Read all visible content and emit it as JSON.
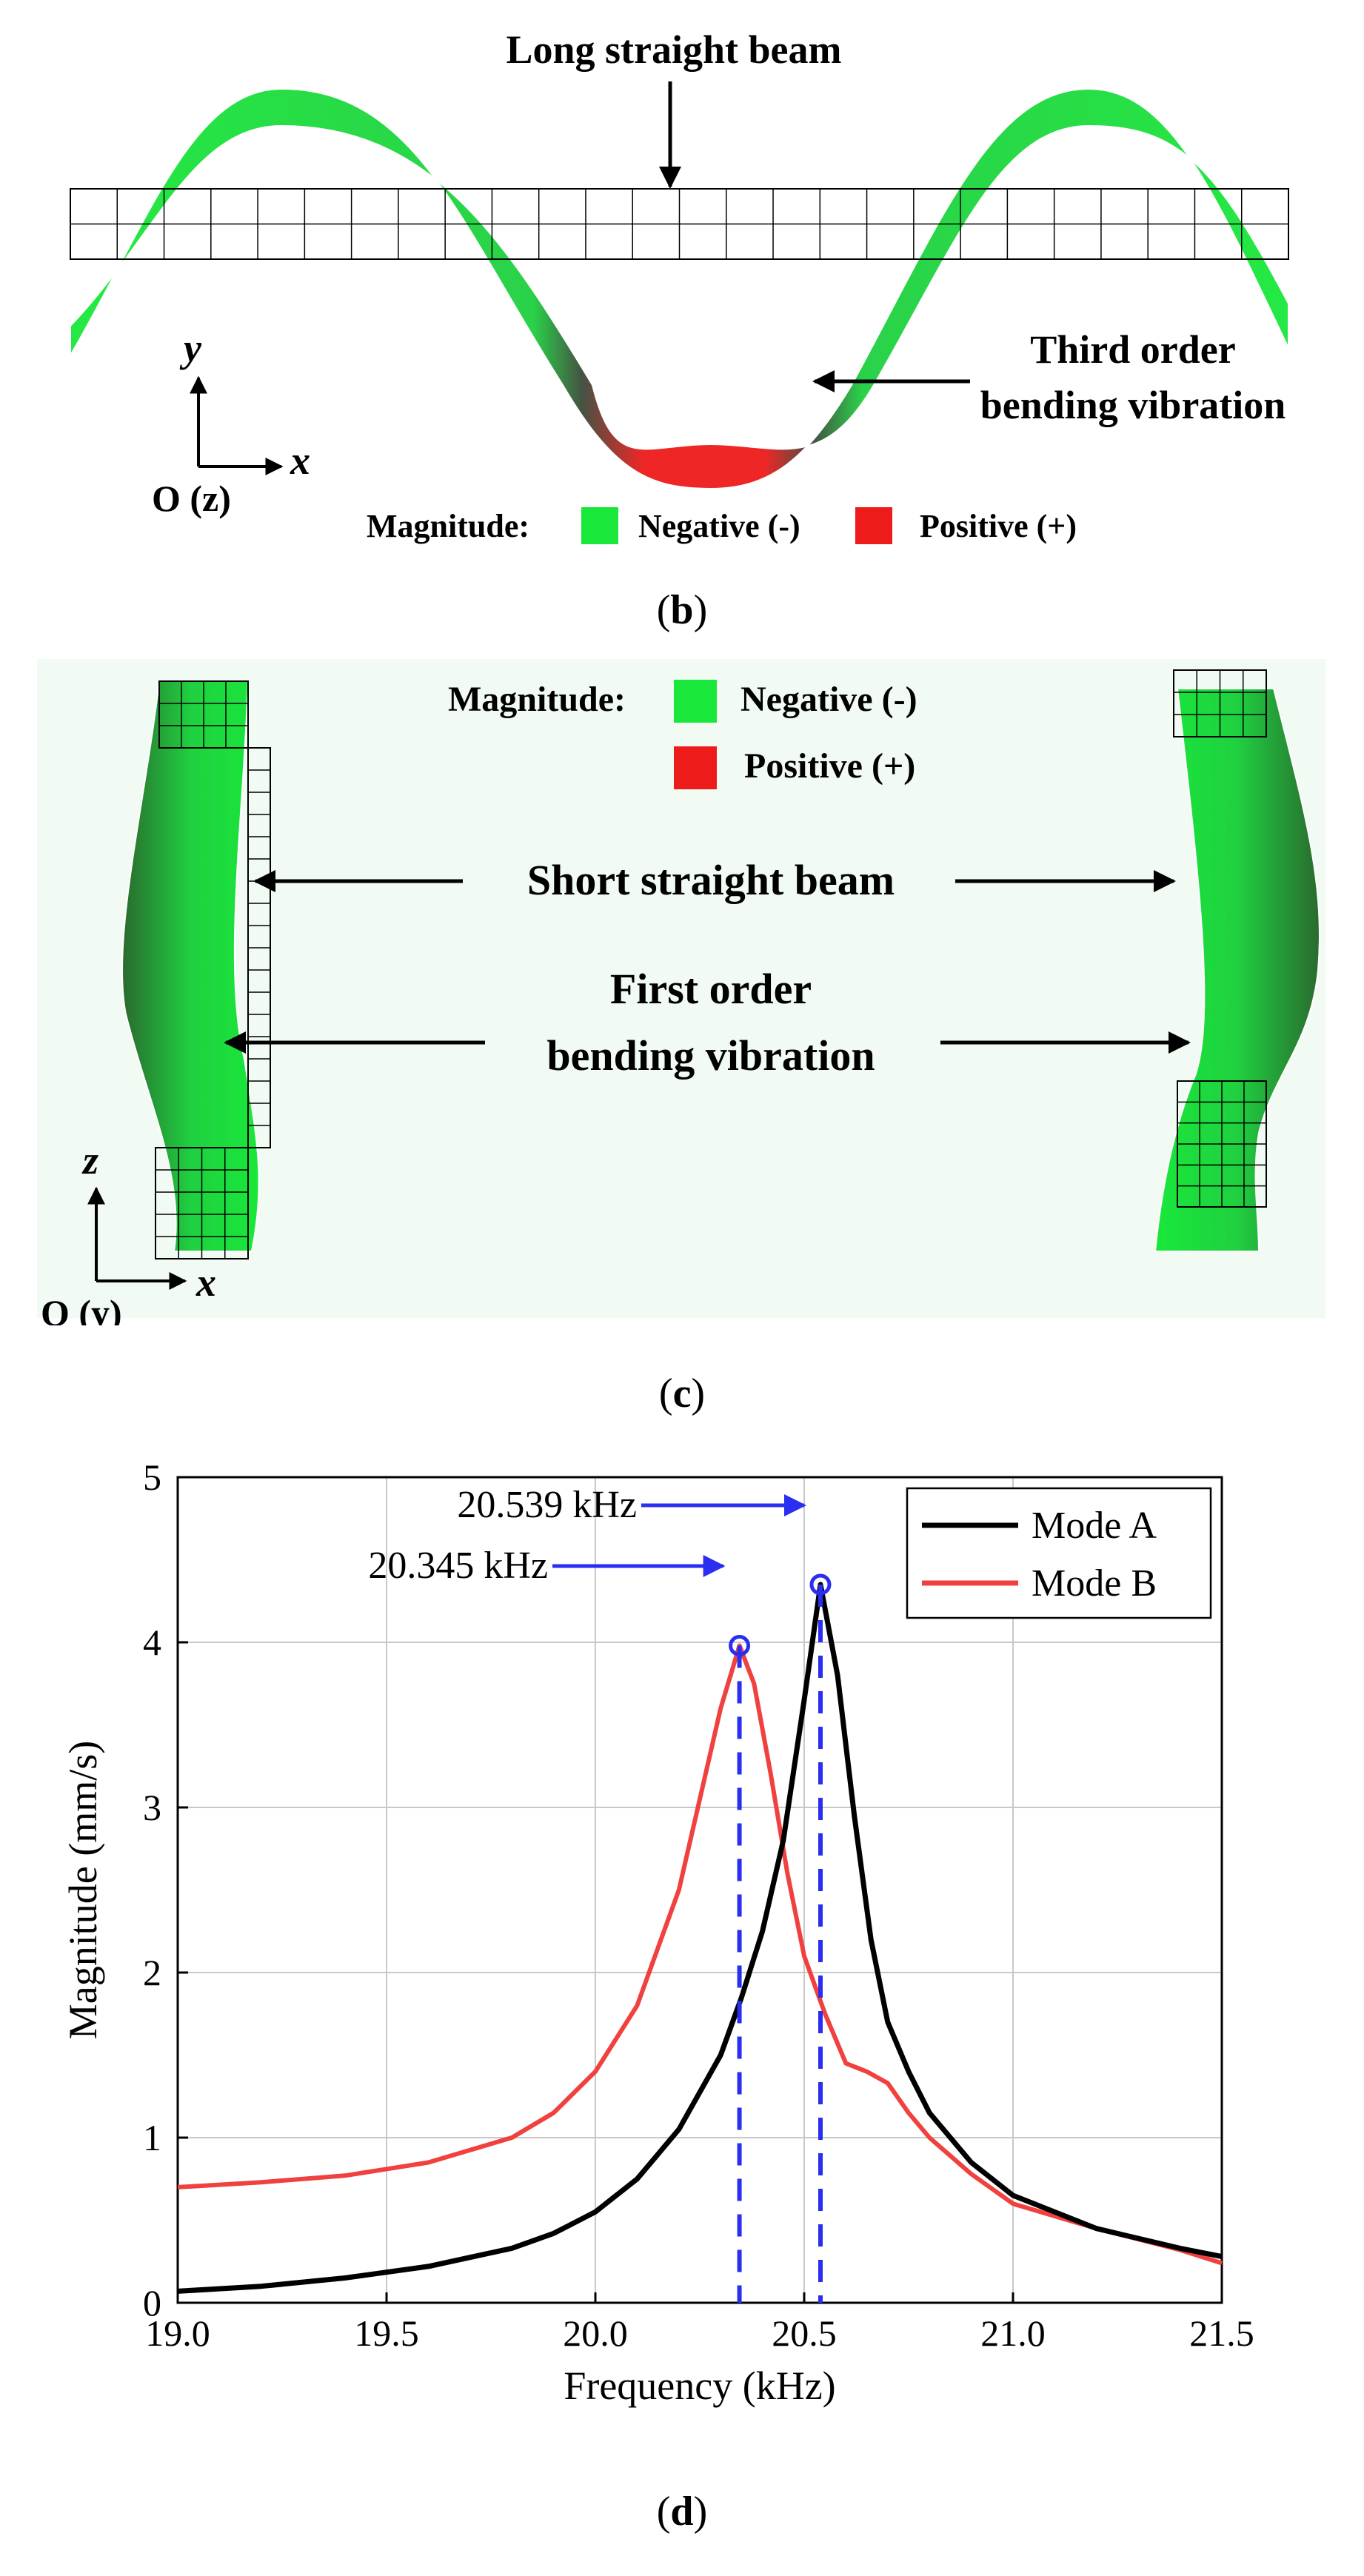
{
  "panel_b": {
    "beam_label": "Long straight beam",
    "vibration_label_line1": "Third order",
    "vibration_label_line2": "bending vibration",
    "axis_y": "y",
    "axis_x": "x",
    "origin_label": "O (z)",
    "legend_title": "Magnitude:",
    "legend_negative": "Negative (-)",
    "legend_positive": "Positive (+)",
    "caption_letter": "b",
    "colors": {
      "negative": "#19e83a",
      "positive": "#ee1b1b",
      "dark": "#2f4a2f"
    }
  },
  "panel_c": {
    "beam_label": "Short straight beam",
    "vibration_label_line1": "First order",
    "vibration_label_line2": "bending vibration",
    "axis_z": "z",
    "axis_x": "x",
    "origin_label": "O (y)",
    "legend_title": "Magnitude:",
    "legend_negative": "Negative (-)",
    "legend_positive": "Positive (+)",
    "caption_letter": "c",
    "colors": {
      "background": "#f1fbf3"
    }
  },
  "panel_d": {
    "caption_letter": "d"
  },
  "chart_data": {
    "type": "line",
    "xlabel": "Frequency (kHz)",
    "ylabel": "Magnitude (mm/s)",
    "xlim": [
      19.0,
      21.5
    ],
    "ylim": [
      0,
      5
    ],
    "xticks": [
      "19.0",
      "19.5",
      "20.0",
      "20.5",
      "21.0",
      "21.5"
    ],
    "yticks": [
      "0",
      "1",
      "2",
      "3",
      "4",
      "5"
    ],
    "grid": true,
    "legend_position": "top-right",
    "series": [
      {
        "name": "Mode A",
        "color": "#000000",
        "x": [
          19.0,
          19.2,
          19.4,
          19.6,
          19.8,
          19.9,
          20.0,
          20.1,
          20.2,
          20.3,
          20.35,
          20.4,
          20.45,
          20.5,
          20.539,
          20.58,
          20.62,
          20.66,
          20.7,
          20.75,
          20.8,
          20.9,
          21.0,
          21.2,
          21.4,
          21.5
        ],
        "y": [
          0.07,
          0.1,
          0.15,
          0.22,
          0.33,
          0.42,
          0.55,
          0.75,
          1.05,
          1.5,
          1.85,
          2.25,
          2.8,
          3.65,
          4.35,
          3.8,
          2.95,
          2.2,
          1.7,
          1.4,
          1.15,
          0.85,
          0.65,
          0.45,
          0.33,
          0.28
        ]
      },
      {
        "name": "Mode B",
        "color": "#f0413f",
        "x": [
          19.0,
          19.2,
          19.4,
          19.6,
          19.8,
          19.9,
          20.0,
          20.1,
          20.2,
          20.25,
          20.3,
          20.345,
          20.38,
          20.42,
          20.46,
          20.5,
          20.55,
          20.6,
          20.65,
          20.7,
          20.75,
          20.8,
          20.9,
          21.0,
          21.2,
          21.4,
          21.5
        ],
        "y": [
          0.7,
          0.73,
          0.77,
          0.85,
          1.0,
          1.15,
          1.4,
          1.8,
          2.5,
          3.05,
          3.6,
          3.98,
          3.75,
          3.2,
          2.6,
          2.1,
          1.75,
          1.45,
          1.4,
          1.33,
          1.15,
          1.0,
          0.78,
          0.6,
          0.45,
          0.32,
          0.24
        ]
      }
    ],
    "annotations": [
      {
        "label": "20.539 kHz",
        "x": 20.539,
        "y": 4.35,
        "color": "#2a2ef0"
      },
      {
        "label": "20.345 kHz",
        "x": 20.345,
        "y": 3.98,
        "color": "#2a2ef0"
      }
    ]
  }
}
